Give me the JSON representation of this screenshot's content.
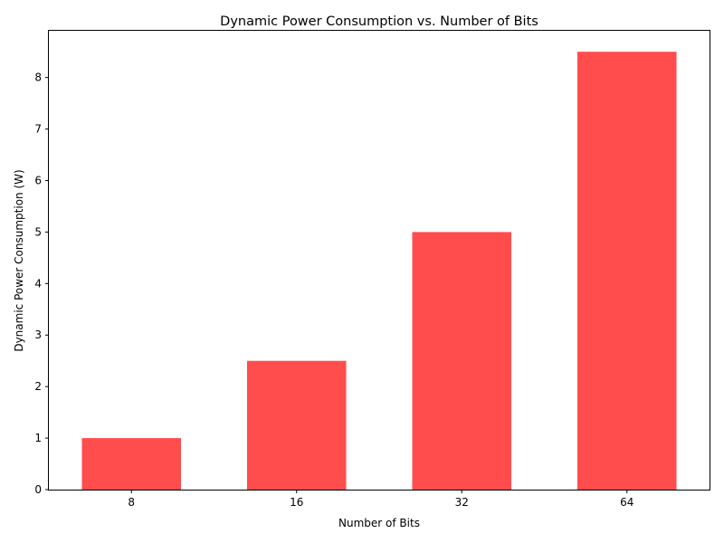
{
  "chart_data": {
    "type": "bar",
    "title": "Dynamic Power Consumption vs. Number of Bits",
    "xlabel": "Number of Bits",
    "ylabel": "Dynamic Power Consumption (W)",
    "categories": [
      "8",
      "16",
      "32",
      "64"
    ],
    "values": [
      1.0,
      2.5,
      5.0,
      8.5
    ],
    "ylim": [
      0,
      8.925
    ],
    "yticks": [
      0,
      1,
      2,
      3,
      4,
      5,
      6,
      7,
      8
    ],
    "grid": false,
    "legend": "none",
    "bar_color": "#ff4d4d"
  }
}
